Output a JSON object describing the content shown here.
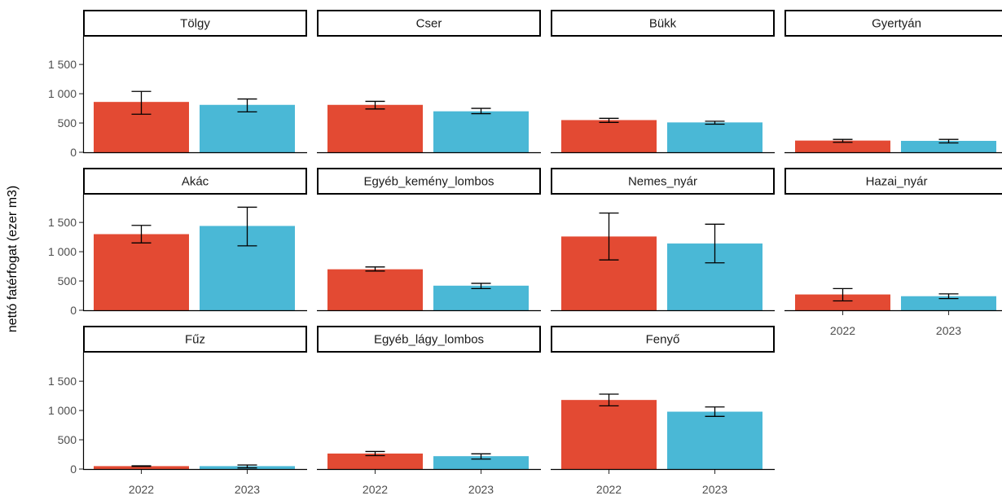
{
  "chart_data": {
    "type": "bar",
    "facet_layout": "wrap-4-columns",
    "ylabel": "nettó fatérfogat (ezer m3)",
    "xlabel": "",
    "categories": [
      "2022",
      "2023"
    ],
    "colors": {
      "2022": "#e34a33",
      "2023": "#4ab8d6"
    },
    "ylim": [
      0,
      1800
    ],
    "yticks": [
      0,
      500,
      1000,
      1500
    ],
    "ytick_labels": [
      "0",
      "500",
      "1 000",
      "1 500"
    ],
    "legend": "none",
    "grid": false,
    "panels": [
      {
        "label": "Tölgy",
        "values": [
          860,
          810
        ],
        "err_low": [
          650,
          690
        ],
        "err_high": [
          1040,
          910
        ]
      },
      {
        "label": "Cser",
        "values": [
          810,
          700
        ],
        "err_low": [
          740,
          660
        ],
        "err_high": [
          870,
          750
        ]
      },
      {
        "label": "Bükk",
        "values": [
          550,
          510
        ],
        "err_low": [
          510,
          480
        ],
        "err_high": [
          580,
          530
        ]
      },
      {
        "label": "Gyertyán",
        "values": [
          200,
          195
        ],
        "err_low": [
          170,
          160
        ],
        "err_high": [
          220,
          220
        ]
      },
      {
        "label": "Akác",
        "values": [
          1300,
          1440
        ],
        "err_low": [
          1150,
          1100
        ],
        "err_high": [
          1450,
          1760
        ]
      },
      {
        "label": "Egyéb_kemény_lombos",
        "values": [
          700,
          420
        ],
        "err_low": [
          670,
          370
        ],
        "err_high": [
          740,
          460
        ]
      },
      {
        "label": "Nemes_nyár",
        "values": [
          1260,
          1140
        ],
        "err_low": [
          860,
          810
        ],
        "err_high": [
          1660,
          1470
        ]
      },
      {
        "label": "Hazai_nyár",
        "values": [
          270,
          240
        ],
        "err_low": [
          160,
          200
        ],
        "err_high": [
          370,
          280
        ]
      },
      {
        "label": "Fűz",
        "values": [
          50,
          50
        ],
        "err_low": [
          45,
          20
        ],
        "err_high": [
          55,
          70
        ]
      },
      {
        "label": "Egyéb_lágy_lombos",
        "values": [
          265,
          220
        ],
        "err_low": [
          230,
          170
        ],
        "err_high": [
          300,
          260
        ]
      },
      {
        "label": "Fenyő",
        "values": [
          1180,
          980
        ],
        "err_low": [
          1080,
          900
        ],
        "err_high": [
          1280,
          1060
        ]
      }
    ]
  }
}
